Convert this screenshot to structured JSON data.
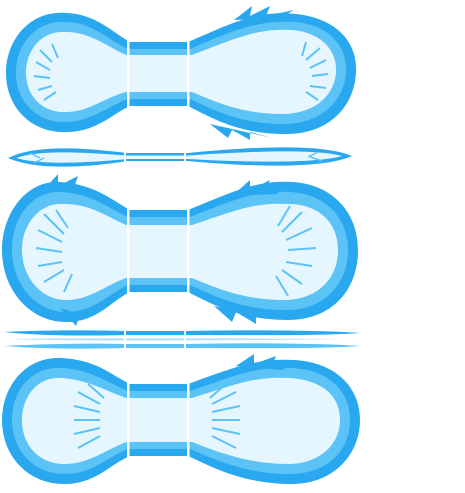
{
  "sprite_sheet": {
    "background": "#ffffff",
    "palette": {
      "outer": "#2aa8ef",
      "mid": "#5bc3f6",
      "light": "#aee0fb",
      "fill": "#e6f6fe",
      "core": "#f7fcff",
      "highlight": "#ffffff"
    },
    "frames": [
      {
        "kind": "capsule",
        "flare": "right"
      },
      {
        "kind": "flat-streak"
      },
      {
        "kind": "capsule",
        "flare": "both"
      },
      {
        "kind": "thin-streak"
      },
      {
        "kind": "capsule",
        "flare": "right"
      }
    ]
  }
}
